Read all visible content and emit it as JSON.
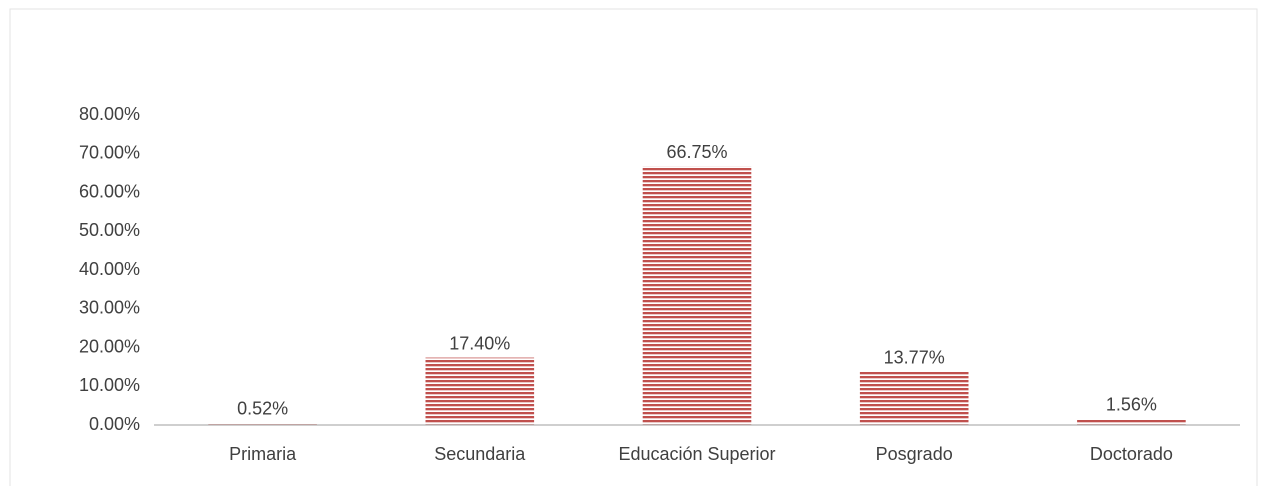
{
  "chart_data": {
    "type": "bar",
    "categories": [
      "Primaria",
      "Secundaria",
      "Educación Superior",
      "Posgrado",
      "Doctorado"
    ],
    "values": [
      0.52,
      17.4,
      66.75,
      13.77,
      1.56
    ],
    "value_labels": [
      "0.52%",
      "17.40%",
      "66.75%",
      "13.77%",
      "1.56%"
    ],
    "color": "#c0504d",
    "ylim": [
      0,
      80
    ],
    "yticks": [
      {
        "value": 0,
        "label": "0.00%"
      },
      {
        "value": 10,
        "label": "10.00%"
      },
      {
        "value": 20,
        "label": "20.00%"
      },
      {
        "value": 30,
        "label": "30.00%"
      },
      {
        "value": 40,
        "label": "40.00%"
      },
      {
        "value": 50,
        "label": "50.00%"
      },
      {
        "value": 60,
        "label": "60.00%"
      },
      {
        "value": 70,
        "label": "70.00%"
      },
      {
        "value": 80,
        "label": "80.00%"
      }
    ],
    "grid": false
  }
}
